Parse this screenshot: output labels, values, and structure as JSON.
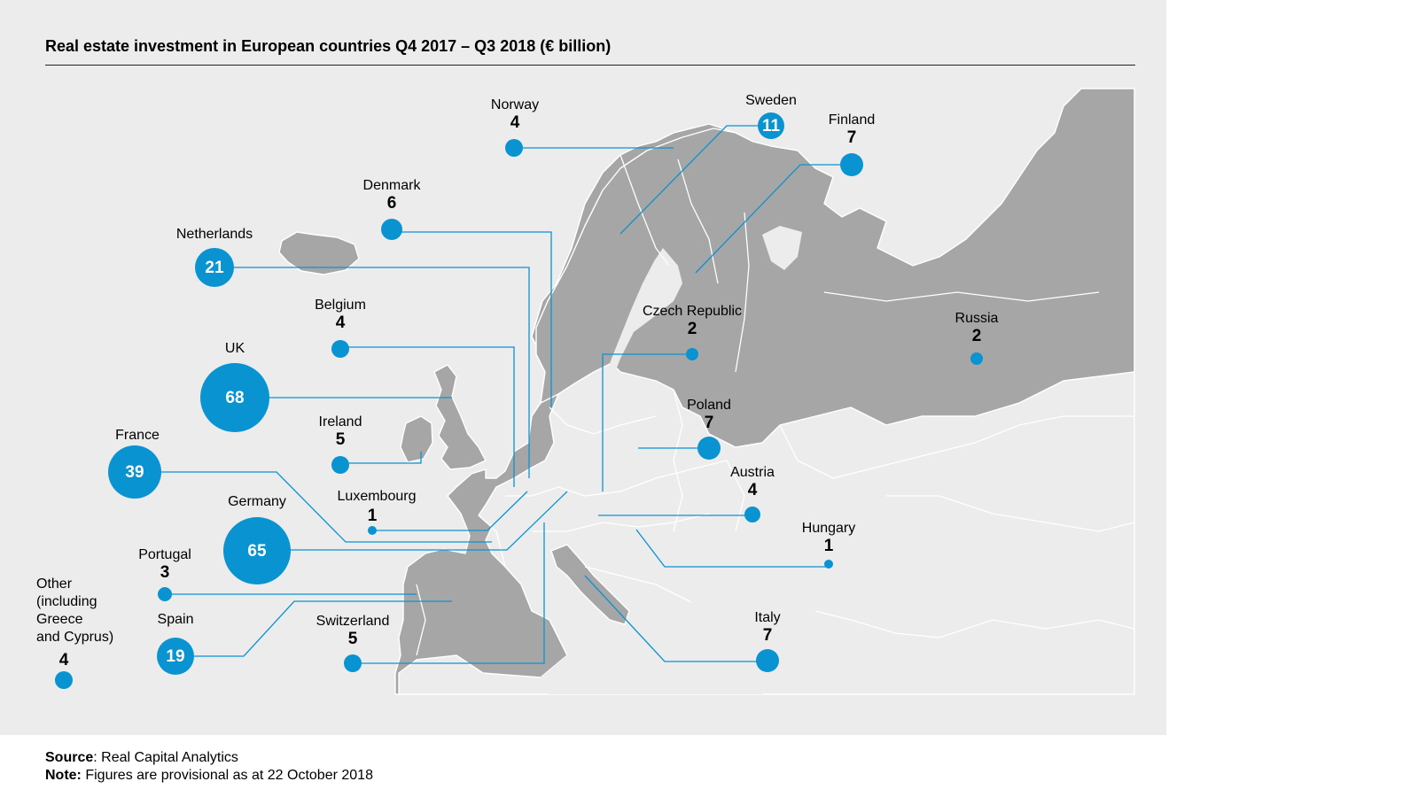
{
  "title": "Real estate investment in European countries Q4 2017 – Q3 2018 (€ billion)",
  "colors": {
    "bubble": "#0a93d1",
    "land": "#a6a6a6",
    "border": "#ffffff",
    "panel": "#ececec"
  },
  "countries": [
    {
      "name": "Norway",
      "value": "4"
    },
    {
      "name": "Sweden",
      "value": "11"
    },
    {
      "name": "Finland",
      "value": "7"
    },
    {
      "name": "Denmark",
      "value": "6"
    },
    {
      "name": "Netherlands",
      "value": "21"
    },
    {
      "name": "Belgium",
      "value": "4"
    },
    {
      "name": "UK",
      "value": "68"
    },
    {
      "name": "Ireland",
      "value": "5"
    },
    {
      "name": "France",
      "value": "39"
    },
    {
      "name": "Luxembourg",
      "value": "1"
    },
    {
      "name": "Germany",
      "value": "65"
    },
    {
      "name": "Portugal",
      "value": "3"
    },
    {
      "name": "Spain",
      "value": "19"
    },
    {
      "name": "Other (including Greece and Cyprus)",
      "value": "4"
    },
    {
      "name": "Switzerland",
      "value": "5"
    },
    {
      "name": "Czech Republic",
      "value": "2"
    },
    {
      "name": "Poland",
      "value": "7"
    },
    {
      "name": "Austria",
      "value": "4"
    },
    {
      "name": "Hungary",
      "value": "1"
    },
    {
      "name": "Italy",
      "value": "7"
    },
    {
      "name": "Russia",
      "value": "2"
    }
  ],
  "other_lines": [
    "Other",
    "(including",
    "Greece",
    "and Cyprus)"
  ],
  "footer": {
    "source_label": "Source",
    "source_text": ": Real Capital Analytics",
    "note_label": "Note:",
    "note_text": " Figures are provisional as at 22 October 2018"
  }
}
